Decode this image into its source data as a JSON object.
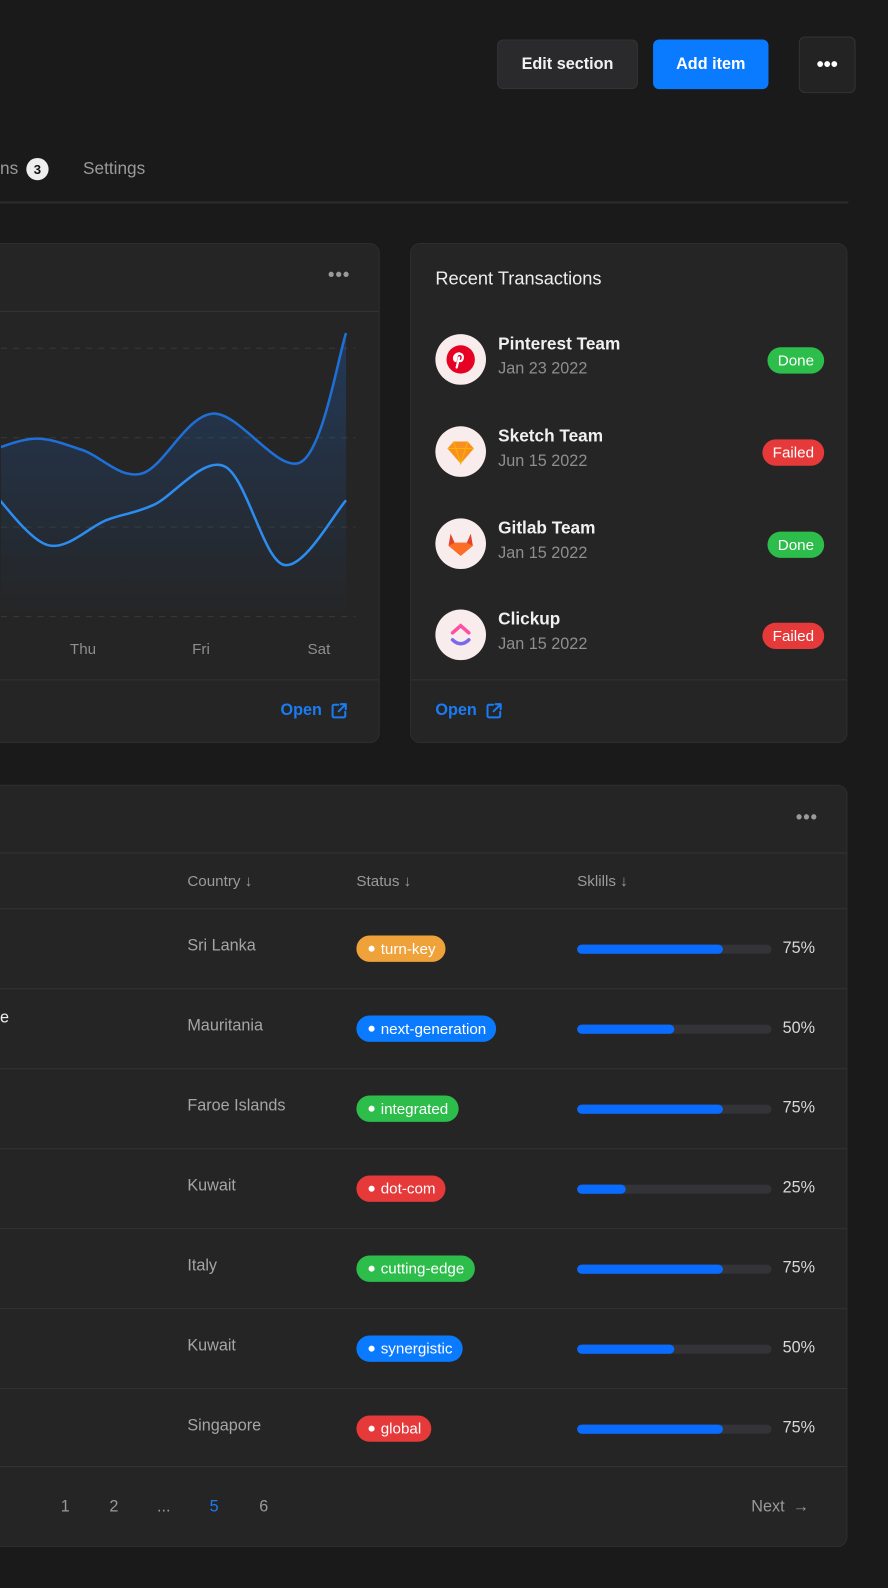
{
  "header": {
    "edit_label": "Edit section",
    "add_label": "Add item",
    "more_icon": "more-horizontal-icon"
  },
  "tabs": [
    {
      "label": "ns",
      "badge": "3"
    },
    {
      "label": "Settings"
    }
  ],
  "chart_card": {
    "open_label": "Open"
  },
  "chart_data": {
    "type": "line",
    "x_ticks": [
      {
        "label": "Thu",
        "x": 1
      },
      {
        "label": "Fri",
        "x": 2
      },
      {
        "label": "Sat",
        "x": 3
      }
    ],
    "ylim": [
      0,
      300
    ],
    "grid": [
      0,
      100,
      200,
      300
    ],
    "series": [
      {
        "name": "upper",
        "color": "#1f6fd6",
        "x": [
          0.2,
          0.6,
          1.0,
          1.5,
          2.1,
          2.85,
          3.23
        ],
        "y": [
          185,
          199,
          186,
          160,
          227,
          173,
          317
        ]
      },
      {
        "name": "lower",
        "color": "#2d8cf0",
        "x": [
          0.2,
          0.7,
          1.2,
          1.6,
          2.2,
          2.7,
          3.23
        ],
        "y": [
          145,
          80,
          108,
          125,
          168,
          58,
          130
        ]
      }
    ]
  },
  "transactions": {
    "title": "Recent Transactions",
    "open_label": "Open",
    "items": [
      {
        "name": "Pinterest Team",
        "date": "Jan 23 2022",
        "status": "Done"
      },
      {
        "name": "Sketch Team",
        "date": "Jun 15 2022",
        "status": "Failed"
      },
      {
        "name": "Gitlab Team",
        "date": "Jan 15 2022",
        "status": "Done"
      },
      {
        "name": "Clickup",
        "date": "Jan 15 2022",
        "status": "Failed"
      }
    ]
  },
  "colors": {
    "done": "#2dbd4b",
    "failed": "#e5393a",
    "accent": "#0a7aff",
    "orange": "#f0a23a"
  },
  "table": {
    "columns": [
      "Country",
      "Status",
      "Sklills"
    ],
    "rows": [
      {
        "name": "",
        "country": "Sri Lanka",
        "status": "turn-key",
        "color": "#f0a23a",
        "skill": 75,
        "skill_label": "75%"
      },
      {
        "name": "e",
        "country": "Mauritania",
        "status": "next-generation",
        "color": "#0a7aff",
        "skill": 50,
        "skill_label": "50%"
      },
      {
        "name": "",
        "country": "Faroe Islands",
        "status": "integrated",
        "color": "#2dbd4b",
        "skill": 75,
        "skill_label": "75%"
      },
      {
        "name": "",
        "country": "Kuwait",
        "status": "dot-com",
        "color": "#e5393a",
        "skill": 25,
        "skill_label": "25%"
      },
      {
        "name": "",
        "country": "Italy",
        "status": "cutting-edge",
        "color": "#2dbd4b",
        "skill": 75,
        "skill_label": "75%"
      },
      {
        "name": "",
        "country": "Kuwait",
        "status": "synergistic",
        "color": "#0a7aff",
        "skill": 50,
        "skill_label": "50%"
      },
      {
        "name": "",
        "country": "Singapore",
        "status": "global",
        "color": "#e5393a",
        "skill": 75,
        "skill_label": "75%"
      }
    ],
    "pagination": {
      "pages": [
        "1",
        "2",
        "...",
        "5",
        "6"
      ],
      "current": "5",
      "next_label": "Next"
    }
  }
}
